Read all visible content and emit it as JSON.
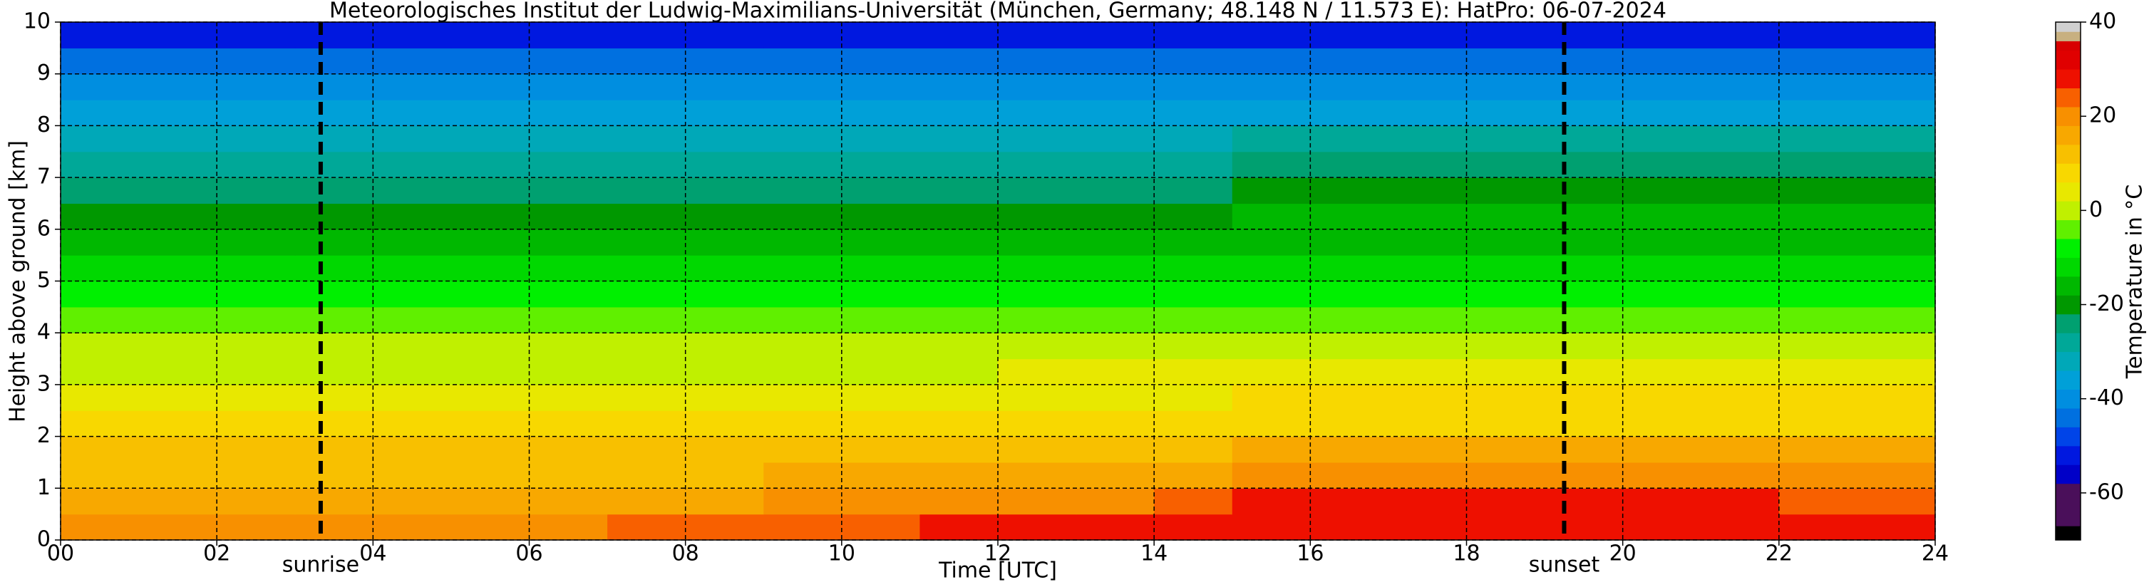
{
  "chart_data": {
    "type": "heatmap",
    "title": "Meteorologisches Institut der Ludwig-Maximilians-Universität (München, Germany; 48.148 N / 11.573 E):    HatPro: 06-07-2024",
    "x_label": "Time [UTC]",
    "y_label": "Height above ground [km]",
    "xlim": [
      0,
      24
    ],
    "ylim": [
      0,
      10
    ],
    "xticks": [
      {
        "value": 0,
        "label": "00"
      },
      {
        "value": 2,
        "label": "02"
      },
      {
        "value": 4,
        "label": "04"
      },
      {
        "value": 6,
        "label": "06"
      },
      {
        "value": 8,
        "label": "08"
      },
      10,
      12,
      14,
      16,
      18,
      20,
      22,
      24
    ],
    "yticks": [
      0,
      1,
      2,
      3,
      4,
      5,
      6,
      7,
      8,
      9,
      10
    ],
    "grid": true,
    "annotations": [
      {
        "label": "sunrise",
        "x": 3.33
      },
      {
        "label": "sunset",
        "x": 19.25
      }
    ],
    "x_edges": [
      0,
      1,
      2,
      3,
      4,
      5,
      6,
      7,
      8,
      9,
      10,
      11,
      12,
      13,
      14,
      15,
      16,
      17,
      18,
      19,
      20,
      21,
      22,
      23,
      24
    ],
    "y_edges": [
      0,
      0.5,
      1,
      1.5,
      2,
      2.5,
      3,
      3.5,
      4,
      4.5,
      5,
      5.5,
      6,
      6.5,
      7,
      7.5,
      8,
      8.5,
      9,
      9.5,
      10
    ],
    "z": [
      [
        21,
        21,
        21,
        21,
        21,
        21,
        21,
        22,
        24,
        25,
        25,
        26,
        26,
        26,
        27,
        28,
        28,
        28,
        28,
        28,
        28,
        28,
        28,
        27
      ],
      [
        16,
        16,
        16,
        16,
        16,
        16,
        16,
        16,
        17,
        18,
        18,
        19,
        20,
        21,
        22,
        27,
        27,
        27,
        26,
        26,
        26,
        26,
        25,
        25
      ],
      [
        13,
        13,
        13,
        13,
        13,
        13,
        13,
        13,
        13,
        14,
        14,
        14,
        15,
        15,
        16,
        19,
        19,
        19,
        18,
        18,
        18,
        18,
        18,
        18
      ],
      [
        10,
        10,
        10,
        10,
        10,
        10,
        10,
        10,
        10,
        10,
        11,
        11,
        11,
        12,
        12,
        14,
        14,
        14,
        14,
        14,
        14,
        14,
        14,
        14
      ],
      [
        7,
        7,
        7,
        7,
        7,
        7,
        7,
        7,
        7,
        7,
        7,
        8,
        8,
        8,
        8,
        9,
        9,
        9,
        9,
        9,
        9,
        9,
        9,
        9
      ],
      [
        4,
        4,
        4,
        4,
        4,
        4,
        4,
        4,
        4,
        4,
        4,
        4,
        5,
        5,
        5,
        6,
        6,
        6,
        6,
        6,
        6,
        6,
        6,
        6
      ],
      [
        1,
        1,
        1,
        1,
        1,
        1,
        1,
        1,
        1,
        1,
        1,
        1,
        2,
        2,
        2,
        3,
        3,
        3,
        3,
        3,
        3,
        3,
        3,
        3
      ],
      [
        -2,
        -2,
        -2,
        -2,
        -2,
        -2,
        -2,
        -2,
        -2,
        -2,
        -2,
        -2,
        -1,
        -1,
        -1,
        0,
        0,
        0,
        0,
        0,
        0,
        0,
        0,
        0
      ],
      [
        -5,
        -5,
        -5,
        -5,
        -5,
        -5,
        -5,
        -5,
        -5,
        -5,
        -5,
        -5,
        -5,
        -5,
        -5,
        -4,
        -4,
        -4,
        -4,
        -4,
        -4,
        -4,
        -4,
        -4
      ],
      [
        -8,
        -8,
        -8,
        -8,
        -8,
        -8,
        -8,
        -8,
        -8,
        -8,
        -8,
        -8,
        -8,
        -8,
        -8,
        -7,
        -7,
        -7,
        -7,
        -7,
        -7,
        -7,
        -7,
        -7
      ],
      [
        -12,
        -12,
        -12,
        -12,
        -12,
        -12,
        -12,
        -12,
        -12,
        -12,
        -12,
        -12,
        -12,
        -12,
        -12,
        -11,
        -11,
        -11,
        -11,
        -11,
        -11,
        -11,
        -11,
        -11
      ],
      [
        -15,
        -15,
        -15,
        -15,
        -15,
        -15,
        -15,
        -15,
        -15,
        -15,
        -15,
        -15,
        -15,
        -15,
        -15,
        -15,
        -15,
        -15,
        -15,
        -15,
        -15,
        -15,
        -15,
        -15
      ],
      [
        -19,
        -19,
        -19,
        -19,
        -19,
        -19,
        -19,
        -19,
        -19,
        -19,
        -19,
        -19,
        -19,
        -19,
        -19,
        -18,
        -18,
        -18,
        -18,
        -18,
        -18,
        -18,
        -18,
        -18
      ],
      [
        -23,
        -23,
        -23,
        -23,
        -23,
        -23,
        -23,
        -23,
        -23,
        -23,
        -23,
        -23,
        -23,
        -23,
        -23,
        -21,
        -21,
        -21,
        -21,
        -21,
        -21,
        -21,
        -21,
        -21
      ],
      [
        -27,
        -27,
        -27,
        -27,
        -27,
        -27,
        -27,
        -27,
        -27,
        -27,
        -27,
        -27,
        -27,
        -27,
        -27,
        -24,
        -24,
        -24,
        -24,
        -24,
        -24,
        -24,
        -24,
        -24
      ],
      [
        -31,
        -31,
        -31,
        -31,
        -31,
        -31,
        -31,
        -31,
        -31,
        -31,
        -31,
        -31,
        -31,
        -31,
        -31,
        -30,
        -30,
        -30,
        -30,
        -30,
        -30,
        -30,
        -30,
        -30
      ],
      [
        -35,
        -35,
        -35,
        -35,
        -35,
        -35,
        -35,
        -35,
        -35,
        -35,
        -35,
        -35,
        -35,
        -35,
        -35,
        -35,
        -35,
        -35,
        -35,
        -35,
        -35,
        -35,
        -35,
        -35
      ],
      [
        -39,
        -39,
        -39,
        -39,
        -39,
        -39,
        -39,
        -39,
        -39,
        -39,
        -39,
        -39,
        -39,
        -39,
        -39,
        -39,
        -39,
        -39,
        -39,
        -39,
        -39,
        -39,
        -39,
        -39
      ],
      [
        -43,
        -43,
        -43,
        -43,
        -43,
        -43,
        -43,
        -43,
        -43,
        -43,
        -43,
        -43,
        -43,
        -43,
        -43,
        -43,
        -43,
        -43,
        -43,
        -43,
        -43,
        -43,
        -43,
        -43
      ],
      [
        -51,
        -51,
        -51,
        -51,
        -51,
        -51,
        -51,
        -51,
        -51,
        -51,
        -51,
        -51,
        -51,
        -51,
        -51,
        -51,
        -51,
        -51,
        -51,
        -51,
        -51,
        -51,
        -51,
        -51
      ]
    ],
    "colorbar": {
      "label": "Temperature in °C",
      "lim": [
        -70,
        40
      ],
      "ticks": [
        -60,
        -40,
        -20,
        0,
        20,
        40
      ],
      "levels": [
        -70,
        -67,
        -58,
        -54,
        -50,
        -46,
        -42,
        -38,
        -34,
        -30,
        -26,
        -22,
        -18,
        -14,
        -10,
        -6,
        -2,
        2,
        6,
        10,
        14,
        18,
        22,
        26,
        30,
        34,
        36,
        38,
        40
      ],
      "colors": [
        "#000000",
        "#4a0f5a",
        "#0000c8",
        "#0018e0",
        "#0044e8",
        "#0070e0",
        "#008ee0",
        "#00a0d8",
        "#00a8b8",
        "#00a898",
        "#00a070",
        "#009800",
        "#00b800",
        "#00d800",
        "#00f000",
        "#60f000",
        "#c0f000",
        "#e8e800",
        "#f8d800",
        "#f8c000",
        "#f8a800",
        "#f89000",
        "#f86000",
        "#ee1000",
        "#e00000",
        "#d80000",
        "#c8b080",
        "#d0d0d0"
      ]
    }
  }
}
